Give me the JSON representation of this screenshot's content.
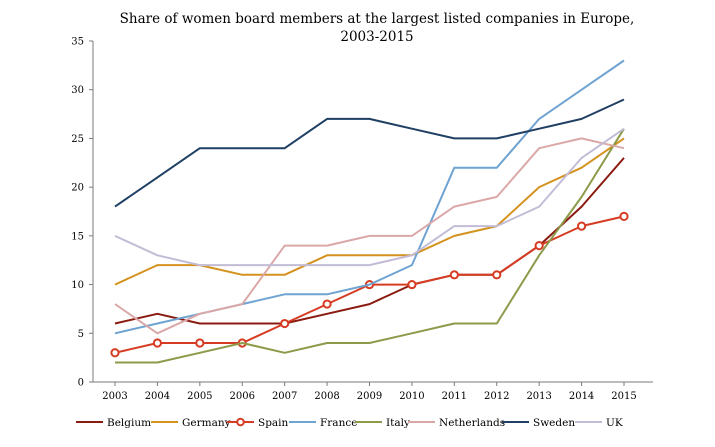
{
  "chart_data": {
    "type": "line",
    "title_line1": "Share of women board members at the largest listed companies in Europe,",
    "title_line2": "2003-2015",
    "xlabel": "",
    "ylabel": "",
    "ylim": [
      0,
      35
    ],
    "yticks": [
      0,
      5,
      10,
      15,
      20,
      25,
      30,
      35
    ],
    "x": [
      "2003",
      "2004",
      "2005",
      "2006",
      "2007",
      "2008",
      "2009",
      "2010",
      "2011",
      "2012",
      "2013",
      "2014",
      "2015"
    ],
    "grid": false,
    "legend_position": "bottom",
    "series": [
      {
        "name": "Belgium",
        "color": "#8b1a10",
        "markers": false,
        "values": [
          6,
          7,
          6,
          6,
          6,
          7,
          8,
          10,
          11,
          11,
          14,
          18,
          23
        ]
      },
      {
        "name": "Germany",
        "color": "#d4921f",
        "markers": false,
        "values": [
          10,
          12,
          12,
          11,
          11,
          13,
          13,
          13,
          15,
          16,
          20,
          22,
          25
        ]
      },
      {
        "name": "Spain",
        "color": "#d63c23",
        "markers": true,
        "values": [
          3,
          4,
          4,
          4,
          6,
          8,
          10,
          10,
          11,
          11,
          14,
          16,
          17
        ]
      },
      {
        "name": "France",
        "color": "#6fa3d2",
        "markers": false,
        "values": [
          5,
          6,
          7,
          8,
          9,
          9,
          10,
          12,
          22,
          22,
          27,
          30,
          33
        ]
      },
      {
        "name": "Italy",
        "color": "#8c9a4a",
        "markers": false,
        "values": [
          2,
          2,
          3,
          4,
          3,
          4,
          4,
          5,
          6,
          6,
          13,
          19,
          26
        ]
      },
      {
        "name": "Netherlands",
        "color": "#dba8a8",
        "markers": false,
        "values": [
          8,
          5,
          7,
          8,
          14,
          14,
          15,
          15,
          18,
          19,
          24,
          25,
          24
        ]
      },
      {
        "name": "Sweden",
        "color": "#1f3f63",
        "markers": false,
        "values": [
          18,
          21,
          24,
          24,
          24,
          27,
          27,
          26,
          25,
          25,
          26,
          27,
          29
        ]
      },
      {
        "name": "UK",
        "color": "#c2bcd6",
        "markers": false,
        "values": [
          15,
          13,
          12,
          12,
          12,
          12,
          12,
          13,
          16,
          16,
          18,
          23,
          26
        ]
      }
    ]
  }
}
